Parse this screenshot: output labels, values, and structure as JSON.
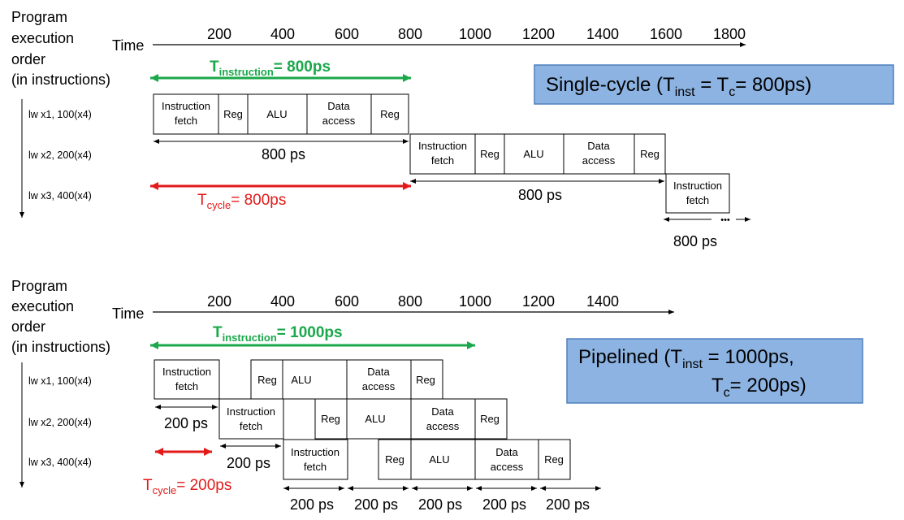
{
  "colors": {
    "green": "#1aa84a",
    "red": "#e31a1a",
    "callout_fill": "#8db3e2",
    "callout_border": "#4f81bd",
    "ink": "#000000"
  },
  "single_cycle": {
    "order_label": [
      "Program",
      "execution",
      "order",
      "(in instructions)"
    ],
    "time_label": "Time",
    "ticks": [
      "200",
      "400",
      "600",
      "800",
      "1000",
      "1200",
      "1400",
      "1600",
      "1800"
    ],
    "t_instruction": {
      "base": "T",
      "sub": "instruction",
      "rest": "= 800ps"
    },
    "t_cycle": {
      "base": "T",
      "sub": "cycle",
      "rest": "= 800ps"
    },
    "instructions": [
      "lw x1, 100(x4)",
      "lw x2, 200(x4)",
      "lw x3, 400(x4)"
    ],
    "stages": {
      "if": [
        "Instruction",
        "fetch"
      ],
      "reg": "Reg",
      "alu": "ALU",
      "mem": [
        "Data",
        "access"
      ]
    },
    "dur_labels": [
      "800 ps",
      "800 ps",
      "800 ps"
    ],
    "ellipsis": "•••",
    "callout": {
      "pre": "Single-cycle (T",
      "sub1": "inst",
      "mid": " = T",
      "sub2": "c",
      "post": "= 800ps)"
    }
  },
  "pipelined": {
    "order_label": [
      "Program",
      "execution",
      "order",
      "(in instructions)"
    ],
    "time_label": "Time",
    "ticks": [
      "200",
      "400",
      "600",
      "800",
      "1000",
      "1200",
      "1400"
    ],
    "t_instruction": {
      "base": "T",
      "sub": "instruction",
      "rest": "= 1000ps"
    },
    "t_cycle": {
      "base": "T",
      "sub": "cycle",
      "rest": "= 200ps"
    },
    "instructions": [
      "lw x1, 100(x4)",
      "lw x2, 200(x4)",
      "lw x3, 400(x4)"
    ],
    "stages": {
      "if": [
        "Instruction",
        "fetch"
      ],
      "reg": "Reg",
      "alu": "ALU",
      "mem": [
        "Data",
        "access"
      ]
    },
    "dur_labels": [
      "200 ps",
      "200 ps",
      "200 ps",
      "200 ps",
      "200 ps",
      "200 ps",
      "200 ps"
    ],
    "callout": {
      "line1_pre": "Pipelined (T",
      "sub1": "inst",
      "line1_post": " = 1000ps,",
      "line2_pre": "T",
      "sub2": "c",
      "line2_post": "= 200ps)"
    }
  }
}
